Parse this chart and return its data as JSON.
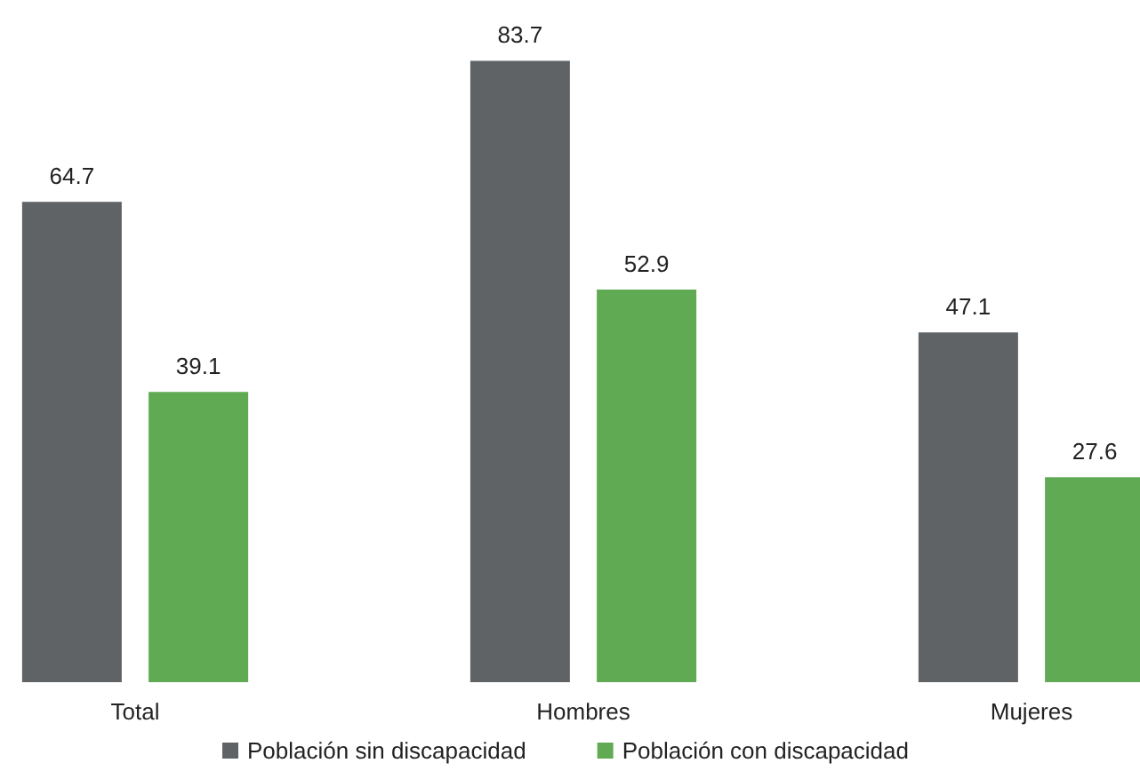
{
  "chart_data": {
    "type": "bar",
    "categories": [
      "Total",
      "Hombres",
      "Mujeres"
    ],
    "series": [
      {
        "name": "Población sin discapacidad",
        "color": "#5f6366",
        "values": [
          64.7,
          83.7,
          47.1
        ]
      },
      {
        "name": "Población con discapacidad",
        "color": "#5faa52",
        "values": [
          39.1,
          52.9,
          27.6
        ]
      }
    ],
    "data_labels": true,
    "legend": "bottom"
  }
}
